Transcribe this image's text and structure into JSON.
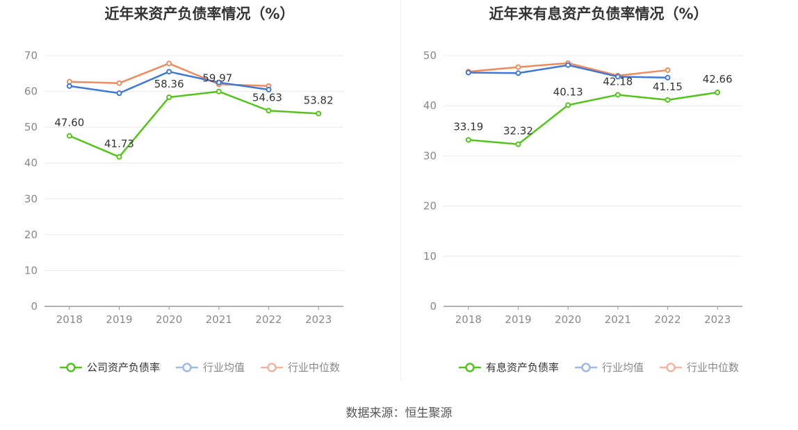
{
  "source": "数据来源：恒生聚源",
  "charts": [
    {
      "id": "left",
      "title": "近年来资产负债率情况（%）",
      "legend": [
        {
          "label": "公司资产负债率",
          "color": "#52c41a"
        },
        {
          "label": "行业均值",
          "color": "#3c78d8"
        },
        {
          "label": "行业中位数",
          "color": "#f08a5d"
        }
      ]
    },
    {
      "id": "right",
      "title": "近年来有息资产负债率情况（%）",
      "legend": [
        {
          "label": "有息资产负债率",
          "color": "#52c41a"
        },
        {
          "label": "行业均值",
          "color": "#3c78d8"
        },
        {
          "label": "行业中位数",
          "color": "#f08a5d"
        }
      ]
    }
  ],
  "chart_data": [
    {
      "type": "line",
      "title": "近年来资产负债率情况（%）",
      "categories": [
        "2018",
        "2019",
        "2020",
        "2021",
        "2022",
        "2023"
      ],
      "ylim": [
        0,
        70
      ],
      "yticks": [
        0,
        10,
        20,
        30,
        40,
        50,
        60,
        70
      ],
      "grid": true,
      "legend_position": "bottom",
      "series": [
        {
          "name": "公司资产负债率",
          "color": "#52c41a",
          "values": [
            47.6,
            41.73,
            58.36,
            59.97,
            54.63,
            53.82
          ],
          "labels": [
            "47.60",
            "41.73",
            "58.36",
            "59.97",
            "54.63",
            "53.82"
          ]
        },
        {
          "name": "行业均值",
          "color": "#3c78d8",
          "values": [
            61.5,
            59.5,
            65.5,
            62.5,
            60.5,
            null
          ]
        },
        {
          "name": "行业中位数",
          "color": "#f08a5d",
          "values": [
            62.7,
            62.3,
            67.8,
            62.0,
            61.5,
            null
          ]
        }
      ]
    },
    {
      "type": "line",
      "title": "近年来有息资产负债率情况（%）",
      "categories": [
        "2018",
        "2019",
        "2020",
        "2021",
        "2022",
        "2023"
      ],
      "ylim": [
        0,
        50
      ],
      "yticks": [
        0,
        10,
        20,
        30,
        40,
        50
      ],
      "grid": true,
      "legend_position": "bottom",
      "series": [
        {
          "name": "有息资产负债率",
          "color": "#52c41a",
          "values": [
            33.19,
            32.32,
            40.13,
            42.18,
            41.15,
            42.66
          ],
          "labels": [
            "33.19",
            "32.32",
            "40.13",
            "42.18",
            "41.15",
            "42.66"
          ]
        },
        {
          "name": "行业均值",
          "color": "#3c78d8",
          "values": [
            46.6,
            46.5,
            48.1,
            45.8,
            45.6,
            null
          ]
        },
        {
          "name": "行业中位数",
          "color": "#f08a5d",
          "values": [
            46.8,
            47.7,
            48.5,
            46.0,
            47.1,
            null
          ]
        }
      ]
    }
  ]
}
